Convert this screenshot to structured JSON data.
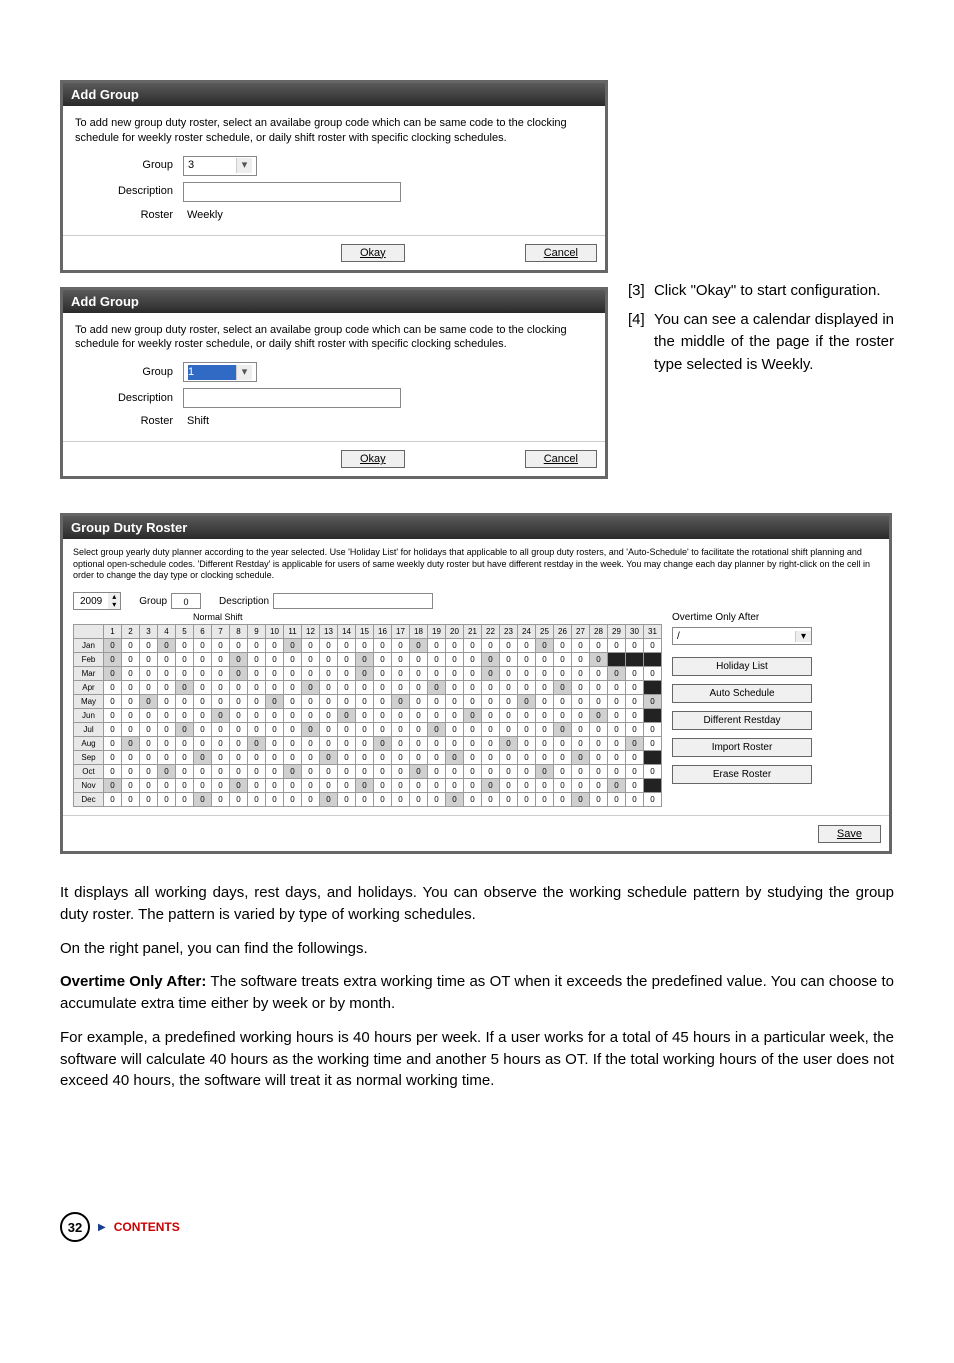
{
  "dialog1": {
    "title": "Add Group",
    "description": "To add new group duty roster, select an availabe group code which can be same code to the clocking schedule for weekly roster schedule, or daily shift roster with specific clocking schedules.",
    "group_label": "Group",
    "group_value": "3",
    "desc_label": "Description",
    "roster_label": "Roster",
    "roster_value": "Weekly",
    "okay": "Okay",
    "cancel": "Cancel"
  },
  "dialog2": {
    "title": "Add Group",
    "description": "To add new group duty roster, select an availabe group code which can be same code to the clocking schedule for weekly roster schedule, or daily shift roster with specific clocking schedules.",
    "group_label": "Group",
    "group_value": "1",
    "desc_label": "Description",
    "roster_label": "Roster",
    "roster_value": "Shift",
    "okay": "Okay",
    "cancel": "Cancel"
  },
  "instructions": [
    {
      "num": "[3]",
      "text": "Click \"Okay\" to start configuration."
    },
    {
      "num": "[4]",
      "text": "You can see a calendar displayed in the middle of the page if the roster type selected is Weekly."
    }
  ],
  "roster": {
    "title": "Group Duty Roster",
    "description": "Select group yearly duty planner according to the year selected. Use 'Holiday List' for holidays that applicable to all group duty rosters, and 'Auto-Schedule' to facilitate the rotational shift planning and optional open-schedule codes. 'Different Restday' is applicable for users of same weekly duty roster but have different restday in the week. You may change each day planner by right-click on the cell in order to change the day type or clocking schedule.",
    "year": "2009",
    "group_label": "Group",
    "group_value": "0",
    "desc_label": "Description",
    "normal_shift_label": "Normal Shift",
    "day_headers": [
      "1",
      "2",
      "3",
      "4",
      "5",
      "6",
      "7",
      "8",
      "9",
      "10",
      "11",
      "12",
      "13",
      "14",
      "15",
      "16",
      "17",
      "18",
      "19",
      "20",
      "21",
      "22",
      "23",
      "24",
      "25",
      "26",
      "27",
      "28",
      "29",
      "30",
      "31"
    ],
    "months": [
      "Jan",
      "Feb",
      "Mar",
      "Apr",
      "May",
      "Jun",
      "Jul",
      "Aug",
      "Sep",
      "Oct",
      "Nov",
      "Dec"
    ],
    "month_days": [
      31,
      28,
      31,
      30,
      31,
      30,
      31,
      31,
      30,
      31,
      30,
      31
    ],
    "shaded_pattern": {
      "Jan": [
        1,
        4,
        11,
        18,
        25
      ],
      "Feb": [
        1,
        8,
        15,
        22,
        28
      ],
      "Mar": [
        1,
        8,
        15,
        22,
        29
      ],
      "Apr": [
        5,
        12,
        19,
        26
      ],
      "May": [
        3,
        10,
        17,
        24,
        31
      ],
      "Jun": [
        7,
        14,
        21,
        28
      ],
      "Jul": [
        5,
        12,
        19,
        26
      ],
      "Aug": [
        2,
        9,
        16,
        23,
        30
      ],
      "Sep": [
        6,
        13,
        20,
        27
      ],
      "Oct": [
        4,
        11,
        18,
        25
      ],
      "Nov": [
        1,
        8,
        15,
        22,
        29
      ],
      "Dec": [
        6,
        13,
        20,
        27
      ]
    },
    "ot_label": "Overtime Only After",
    "ot_value": "/",
    "side_buttons": [
      "Holiday List",
      "Auto Schedule",
      "Different Restday",
      "Import Roster",
      "Erase Roster"
    ],
    "save": "Save"
  },
  "body_text": {
    "p1": "It displays all working days, rest days, and holidays. You can observe the working schedule pattern by studying the group duty roster. The pattern is varied by type of working schedules.",
    "p2": "On the right panel, you can find the followings.",
    "p3_bold": "Overtime Only After:",
    "p3": " The software treats extra working time as OT when it exceeds the predefined value. You can choose to accumulate extra time either by week or by month.",
    "p4": "For example, a predefined working hours is 40 hours per week.  If a user works for a total of 45 hours in a particular week, the software will calculate 40 hours as the working time and another 5 hours as OT. If the total working hours of the user does not exceed 40 hours, the software will treat it as normal working time."
  },
  "footer": {
    "page": "32",
    "contents": "CONTENTS"
  }
}
